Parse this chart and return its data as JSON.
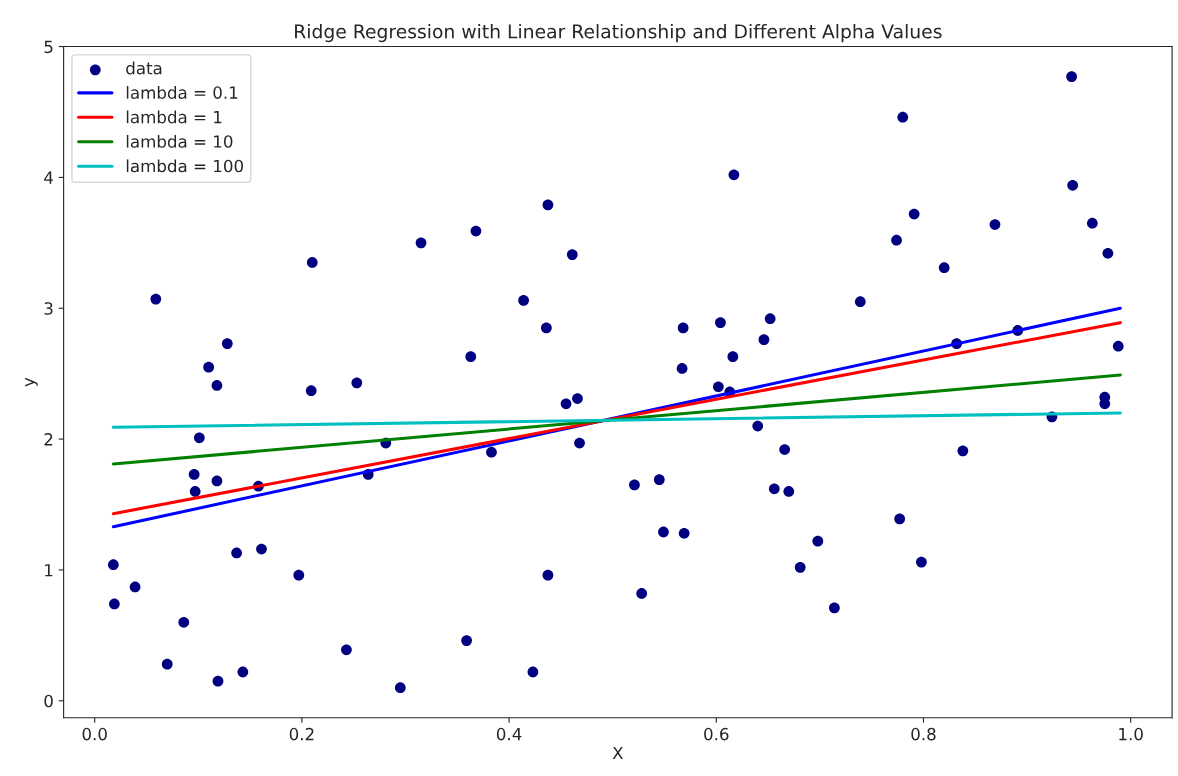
{
  "chart_data": {
    "type": "scatter",
    "title": "Ridge Regression with Linear Relationship and Different Alpha Values",
    "xlabel": "X",
    "ylabel": "y",
    "xlim": [
      -0.03,
      1.04
    ],
    "ylim": [
      -0.13,
      5.0
    ],
    "xticks": [
      {
        "value": 0,
        "label": "0.0"
      },
      0.2,
      0.4,
      0.6,
      0.8,
      {
        "value": 1,
        "label": "1.0"
      }
    ],
    "yticks": [
      0,
      1,
      2,
      3,
      4,
      5
    ],
    "grid": false,
    "legend": "top left",
    "series": [
      {
        "name": "data",
        "marker": "circle",
        "color": "#000080",
        "x": [
          0.018,
          0.039,
          0.019,
          0.059,
          0.07,
          0.086,
          0.096,
          0.097,
          0.101,
          0.11,
          0.118,
          0.118,
          0.119,
          0.128,
          0.137,
          0.143,
          0.158,
          0.161,
          0.197,
          0.21,
          0.209,
          0.243,
          0.253,
          0.264,
          0.281,
          0.295,
          0.315,
          0.359,
          0.363,
          0.368,
          0.383,
          0.414,
          0.436,
          0.423,
          0.4375,
          0.4375,
          0.455,
          0.461,
          0.466,
          0.468,
          0.521,
          0.528,
          0.545,
          0.549,
          0.568,
          0.567,
          0.569,
          0.604,
          0.602,
          0.613,
          0.616,
          0.617,
          0.64,
          0.646,
          0.652,
          0.656,
          0.666,
          0.67,
          0.681,
          0.698,
          0.714,
          0.739,
          0.774,
          0.777,
          0.78,
          0.791,
          0.798,
          0.82,
          0.832,
          0.838,
          0.869,
          0.891,
          0.924,
          0.943,
          0.944,
          0.963,
          0.975,
          0.975,
          0.978,
          0.988
        ],
        "values": [
          1.04,
          0.87,
          0.74,
          3.07,
          0.28,
          0.6,
          1.73,
          1.6,
          2.01,
          2.55,
          2.41,
          1.68,
          0.15,
          2.73,
          1.13,
          0.22,
          1.64,
          1.16,
          0.96,
          3.35,
          2.37,
          0.39,
          2.43,
          1.73,
          1.97,
          0.1,
          3.5,
          0.46,
          2.63,
          3.59,
          1.9,
          3.06,
          2.85,
          0.22,
          3.79,
          0.96,
          2.27,
          3.41,
          2.31,
          1.97,
          1.65,
          0.82,
          1.69,
          1.29,
          2.85,
          2.54,
          1.28,
          2.89,
          2.4,
          2.36,
          2.63,
          4.02,
          2.1,
          2.76,
          2.92,
          1.62,
          1.92,
          1.6,
          1.02,
          1.22,
          0.71,
          3.05,
          3.52,
          1.39,
          4.46,
          3.72,
          1.06,
          3.31,
          2.73,
          1.91,
          3.64,
          2.83,
          2.17,
          4.77,
          3.94,
          3.65,
          2.32,
          2.27,
          3.42,
          2.71
        ]
      },
      {
        "name": "lambda = 0.1",
        "type": "line",
        "color": "#0000ff",
        "x": [
          0.018,
          0.99
        ],
        "values": [
          1.33,
          3.0
        ]
      },
      {
        "name": "lambda = 1",
        "type": "line",
        "color": "#ff0000",
        "x": [
          0.018,
          0.99
        ],
        "values": [
          1.43,
          2.89
        ]
      },
      {
        "name": "lambda = 10",
        "type": "line",
        "color": "#008000",
        "x": [
          0.018,
          0.99
        ],
        "values": [
          1.81,
          2.49
        ]
      },
      {
        "name": "lambda = 100",
        "type": "line",
        "color": "#00bfbf",
        "x": [
          0.018,
          0.99
        ],
        "values": [
          2.09,
          2.2
        ]
      }
    ]
  }
}
